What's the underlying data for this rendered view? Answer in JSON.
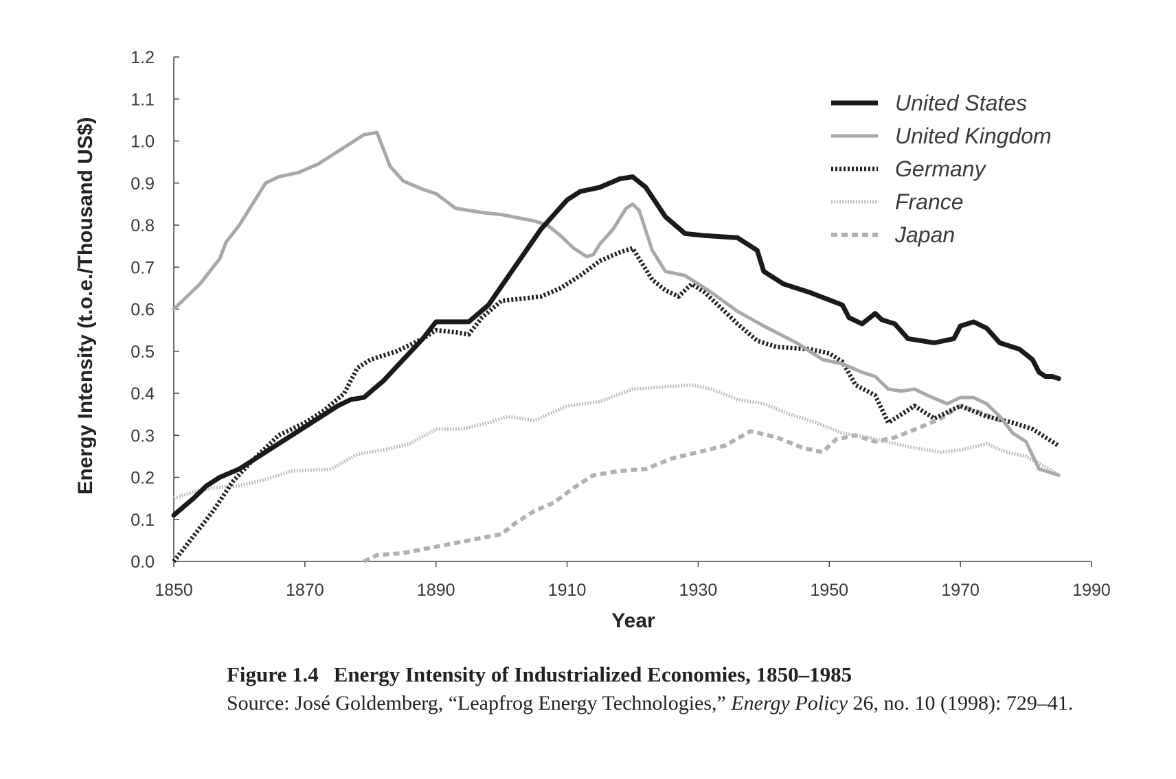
{
  "chart_data": {
    "type": "line",
    "xlabel": "Year",
    "ylabel": "Energy Intensity (t.o.e./Thousand US$)",
    "xlim": [
      1850,
      1990
    ],
    "ylim": [
      0.0,
      1.2
    ],
    "x_ticks": [
      "1850",
      "1870",
      "1890",
      "1910",
      "1930",
      "1950",
      "1970",
      "1990"
    ],
    "y_ticks": [
      "0.0",
      "0.1",
      "0.2",
      "0.3",
      "0.4",
      "0.5",
      "0.6",
      "0.7",
      "0.8",
      "0.9",
      "1.0",
      "1.1",
      "1.2"
    ],
    "legend_position": "top-right",
    "series": [
      {
        "name": "United States",
        "color": "#1a1a1a",
        "style": "solid-thick",
        "points": [
          [
            1850,
            0.11
          ],
          [
            1853,
            0.15
          ],
          [
            1855,
            0.18
          ],
          [
            1857,
            0.2
          ],
          [
            1860,
            0.22
          ],
          [
            1865,
            0.27
          ],
          [
            1870,
            0.32
          ],
          [
            1875,
            0.37
          ],
          [
            1877,
            0.385
          ],
          [
            1879,
            0.39
          ],
          [
            1882,
            0.43
          ],
          [
            1885,
            0.48
          ],
          [
            1888,
            0.53
          ],
          [
            1890,
            0.57
          ],
          [
            1895,
            0.57
          ],
          [
            1898,
            0.61
          ],
          [
            1902,
            0.7
          ],
          [
            1906,
            0.79
          ],
          [
            1910,
            0.86
          ],
          [
            1912,
            0.88
          ],
          [
            1915,
            0.89
          ],
          [
            1918,
            0.91
          ],
          [
            1920,
            0.915
          ],
          [
            1922,
            0.89
          ],
          [
            1925,
            0.82
          ],
          [
            1928,
            0.78
          ],
          [
            1931,
            0.775
          ],
          [
            1936,
            0.77
          ],
          [
            1939,
            0.74
          ],
          [
            1940,
            0.69
          ],
          [
            1943,
            0.66
          ],
          [
            1947,
            0.64
          ],
          [
            1952,
            0.61
          ],
          [
            1953,
            0.58
          ],
          [
            1955,
            0.565
          ],
          [
            1957,
            0.59
          ],
          [
            1958,
            0.575
          ],
          [
            1960,
            0.565
          ],
          [
            1962,
            0.53
          ],
          [
            1964,
            0.525
          ],
          [
            1966,
            0.52
          ],
          [
            1969,
            0.53
          ],
          [
            1970,
            0.56
          ],
          [
            1972,
            0.57
          ],
          [
            1974,
            0.555
          ],
          [
            1976,
            0.52
          ],
          [
            1979,
            0.505
          ],
          [
            1981,
            0.48
          ],
          [
            1982,
            0.45
          ],
          [
            1983,
            0.44
          ],
          [
            1984,
            0.44
          ],
          [
            1985,
            0.435
          ]
        ]
      },
      {
        "name": "United Kingdom",
        "color": "#a8a8a8",
        "style": "solid",
        "points": [
          [
            1850,
            0.6
          ],
          [
            1854,
            0.66
          ],
          [
            1857,
            0.72
          ],
          [
            1858,
            0.76
          ],
          [
            1860,
            0.8
          ],
          [
            1862,
            0.85
          ],
          [
            1864,
            0.9
          ],
          [
            1866,
            0.915
          ],
          [
            1869,
            0.925
          ],
          [
            1872,
            0.945
          ],
          [
            1876,
            0.985
          ],
          [
            1879,
            1.015
          ],
          [
            1881,
            1.02
          ],
          [
            1883,
            0.94
          ],
          [
            1885,
            0.905
          ],
          [
            1888,
            0.885
          ],
          [
            1890,
            0.875
          ],
          [
            1893,
            0.84
          ],
          [
            1897,
            0.83
          ],
          [
            1900,
            0.825
          ],
          [
            1905,
            0.81
          ],
          [
            1907,
            0.8
          ],
          [
            1909,
            0.775
          ],
          [
            1911,
            0.745
          ],
          [
            1913,
            0.725
          ],
          [
            1914,
            0.73
          ],
          [
            1915,
            0.755
          ],
          [
            1917,
            0.79
          ],
          [
            1919,
            0.84
          ],
          [
            1920,
            0.85
          ],
          [
            1921,
            0.835
          ],
          [
            1923,
            0.74
          ],
          [
            1925,
            0.69
          ],
          [
            1928,
            0.68
          ],
          [
            1932,
            0.64
          ],
          [
            1936,
            0.595
          ],
          [
            1940,
            0.56
          ],
          [
            1945,
            0.52
          ],
          [
            1949,
            0.48
          ],
          [
            1952,
            0.47
          ],
          [
            1955,
            0.45
          ],
          [
            1957,
            0.44
          ],
          [
            1959,
            0.41
          ],
          [
            1961,
            0.405
          ],
          [
            1963,
            0.41
          ],
          [
            1965,
            0.395
          ],
          [
            1968,
            0.375
          ],
          [
            1970,
            0.39
          ],
          [
            1972,
            0.39
          ],
          [
            1974,
            0.375
          ],
          [
            1976,
            0.345
          ],
          [
            1978,
            0.305
          ],
          [
            1980,
            0.285
          ],
          [
            1982,
            0.22
          ],
          [
            1985,
            0.205
          ]
        ]
      },
      {
        "name": "Germany",
        "color": "#222222",
        "style": "dotted-thick",
        "points": [
          [
            1850,
            0.0
          ],
          [
            1853,
            0.06
          ],
          [
            1856,
            0.12
          ],
          [
            1859,
            0.19
          ],
          [
            1862,
            0.24
          ],
          [
            1866,
            0.3
          ],
          [
            1870,
            0.33
          ],
          [
            1873,
            0.36
          ],
          [
            1876,
            0.4
          ],
          [
            1878,
            0.46
          ],
          [
            1880,
            0.48
          ],
          [
            1884,
            0.5
          ],
          [
            1888,
            0.53
          ],
          [
            1890,
            0.55
          ],
          [
            1893,
            0.545
          ],
          [
            1895,
            0.54
          ],
          [
            1897,
            0.58
          ],
          [
            1900,
            0.62
          ],
          [
            1903,
            0.625
          ],
          [
            1906,
            0.63
          ],
          [
            1909,
            0.65
          ],
          [
            1912,
            0.68
          ],
          [
            1915,
            0.715
          ],
          [
            1918,
            0.735
          ],
          [
            1920,
            0.745
          ],
          [
            1921,
            0.72
          ],
          [
            1923,
            0.67
          ],
          [
            1925,
            0.645
          ],
          [
            1927,
            0.63
          ],
          [
            1929,
            0.66
          ],
          [
            1931,
            0.64
          ],
          [
            1933,
            0.61
          ],
          [
            1936,
            0.565
          ],
          [
            1939,
            0.525
          ],
          [
            1942,
            0.51
          ],
          [
            1947,
            0.505
          ],
          [
            1950,
            0.495
          ],
          [
            1952,
            0.475
          ],
          [
            1954,
            0.42
          ],
          [
            1957,
            0.395
          ],
          [
            1959,
            0.33
          ],
          [
            1960,
            0.34
          ],
          [
            1963,
            0.37
          ],
          [
            1966,
            0.34
          ],
          [
            1970,
            0.37
          ],
          [
            1974,
            0.345
          ],
          [
            1978,
            0.33
          ],
          [
            1981,
            0.315
          ],
          [
            1985,
            0.275
          ]
        ]
      },
      {
        "name": "France",
        "color": "#bdbdbd",
        "style": "dotted",
        "points": [
          [
            1850,
            0.15
          ],
          [
            1853,
            0.165
          ],
          [
            1856,
            0.175
          ],
          [
            1860,
            0.18
          ],
          [
            1864,
            0.195
          ],
          [
            1868,
            0.215
          ],
          [
            1874,
            0.22
          ],
          [
            1878,
            0.255
          ],
          [
            1882,
            0.265
          ],
          [
            1886,
            0.28
          ],
          [
            1890,
            0.315
          ],
          [
            1894,
            0.315
          ],
          [
            1898,
            0.33
          ],
          [
            1901,
            0.345
          ],
          [
            1905,
            0.335
          ],
          [
            1910,
            0.37
          ],
          [
            1915,
            0.38
          ],
          [
            1920,
            0.41
          ],
          [
            1925,
            0.415
          ],
          [
            1929,
            0.42
          ],
          [
            1932,
            0.41
          ],
          [
            1936,
            0.385
          ],
          [
            1940,
            0.375
          ],
          [
            1944,
            0.35
          ],
          [
            1948,
            0.33
          ],
          [
            1952,
            0.305
          ],
          [
            1956,
            0.295
          ],
          [
            1960,
            0.28
          ],
          [
            1963,
            0.27
          ],
          [
            1967,
            0.26
          ],
          [
            1970,
            0.265
          ],
          [
            1974,
            0.28
          ],
          [
            1977,
            0.26
          ],
          [
            1980,
            0.25
          ],
          [
            1983,
            0.225
          ],
          [
            1985,
            0.205
          ]
        ]
      },
      {
        "name": "Japan",
        "color": "#b0b0b0",
        "style": "dashed",
        "points": [
          [
            1879,
            0.0
          ],
          [
            1881,
            0.015
          ],
          [
            1885,
            0.02
          ],
          [
            1890,
            0.035
          ],
          [
            1895,
            0.05
          ],
          [
            1900,
            0.065
          ],
          [
            1902,
            0.09
          ],
          [
            1905,
            0.12
          ],
          [
            1908,
            0.14
          ],
          [
            1911,
            0.175
          ],
          [
            1914,
            0.205
          ],
          [
            1918,
            0.215
          ],
          [
            1922,
            0.22
          ],
          [
            1926,
            0.245
          ],
          [
            1930,
            0.26
          ],
          [
            1934,
            0.275
          ],
          [
            1938,
            0.31
          ],
          [
            1942,
            0.295
          ],
          [
            1946,
            0.27
          ],
          [
            1949,
            0.26
          ],
          [
            1951,
            0.29
          ],
          [
            1954,
            0.3
          ],
          [
            1957,
            0.285
          ],
          [
            1960,
            0.295
          ],
          [
            1964,
            0.32
          ],
          [
            1967,
            0.34
          ],
          [
            1970,
            0.37
          ],
          [
            1973,
            0.355
          ],
          [
            1976,
            0.335
          ]
        ]
      }
    ]
  },
  "caption": {
    "label": "Figure 1.4",
    "title": "Energy Intensity of Industrialized Economies, 1850–1985",
    "source_prefix": "Source: José Goldemberg, “Leapfrog Energy Technologies,” ",
    "journal": "Energy Policy",
    "source_suffix": " 26, no. 10 (1998): 729–41."
  }
}
